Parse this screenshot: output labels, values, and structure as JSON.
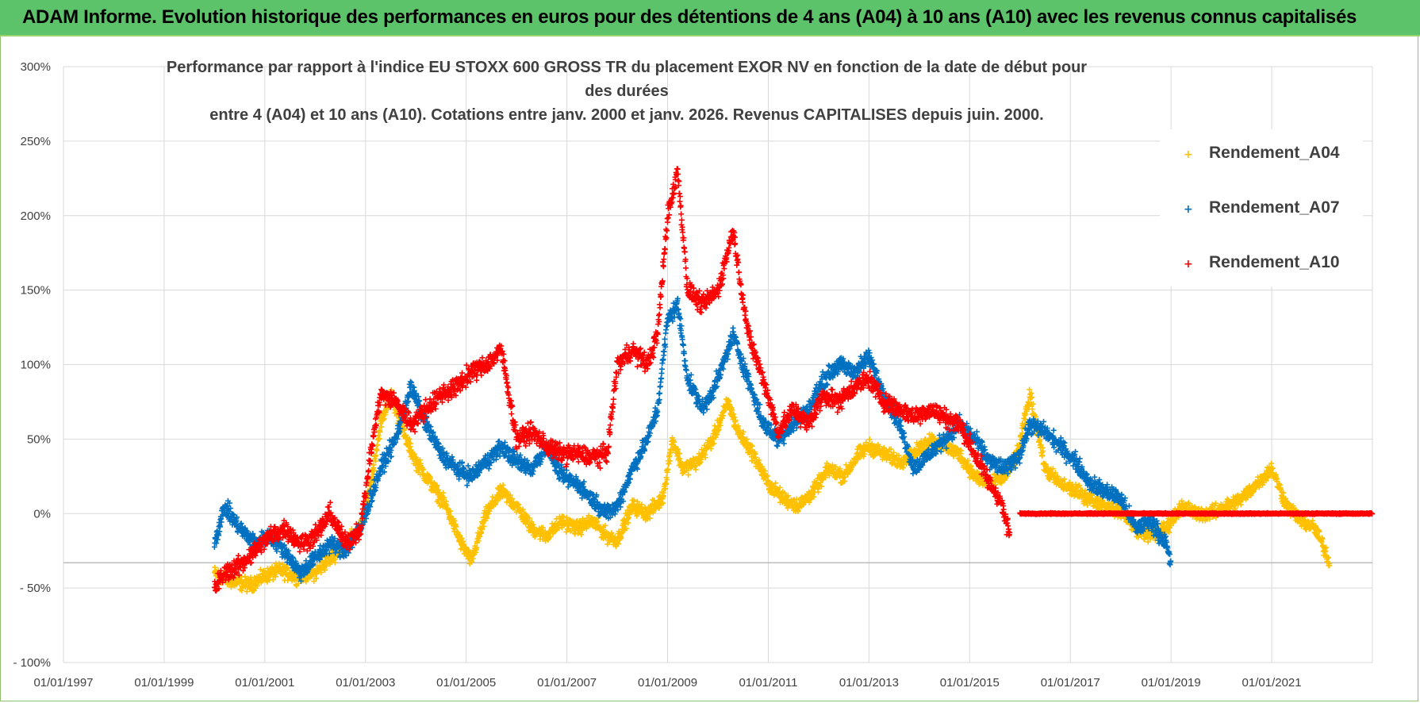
{
  "header": {
    "title": "ADAM Informe. Evolution historique des performances en euros pour des détentions de 4 ans (A04) à 10 ans (A10) avec les revenus connus capitalisés"
  },
  "colors": {
    "header_bg": "#5cc36a",
    "A04": "#ffc000",
    "A07": "#0070c0",
    "A10": "#ff0000",
    "grid": "#d9d9d9",
    "text": "#404040"
  },
  "chart_data": {
    "type": "scatter",
    "title_line1": "Performance par rapport à l'indice EU STOXX 600 GROSS TR  du placement EXOR NV en fonction de la date de début pour des durées",
    "title_line2": "entre 4 (A04) et 10 ans (A10).  Cotations entre janv. 2000 et janv. 2026. Revenus CAPITALISES depuis juin. 2000.",
    "x_range": [
      1997.0,
      2023.0
    ],
    "ylim": [
      -100,
      300
    ],
    "y_ticks": [
      -100,
      -50,
      0,
      50,
      100,
      150,
      200,
      250,
      300
    ],
    "y_tick_labels": [
      "- 100%",
      "- 50%",
      "0%",
      "50%",
      "100%",
      "150%",
      "200%",
      "250%",
      "300%"
    ],
    "x_ticks": [
      1997,
      1999,
      2001,
      2003,
      2005,
      2007,
      2009,
      2011,
      2013,
      2015,
      2017,
      2019,
      2021
    ],
    "x_tick_labels": [
      "01/01/1997",
      "01/01/1999",
      "01/01/2001",
      "01/01/2003",
      "01/01/2005",
      "01/01/2007",
      "01/01/2009",
      "01/01/2011",
      "01/01/2013",
      "01/01/2015",
      "01/01/2017",
      "01/01/2019",
      "01/01/2021"
    ],
    "reference_line": -33,
    "legend": [
      "Rendement_A04",
      "Rendement_A07",
      "Rendement_A10"
    ],
    "series": [
      {
        "name": "Rendement_A04",
        "key": "A04",
        "x": [
          2000.0,
          2000.3,
          2000.7,
          2001.0,
          2001.3,
          2001.6,
          2002.0,
          2002.3,
          2002.6,
          2002.9,
          2003.1,
          2003.3,
          2003.5,
          2003.8,
          2004.0,
          2004.3,
          2004.6,
          2004.9,
          2005.1,
          2005.4,
          2005.7,
          2006.0,
          2006.3,
          2006.6,
          2006.9,
          2007.2,
          2007.5,
          2007.8,
          2008.0,
          2008.3,
          2008.6,
          2008.9,
          2009.1,
          2009.3,
          2009.6,
          2009.9,
          2010.2,
          2010.4,
          2010.7,
          2011.0,
          2011.3,
          2011.6,
          2011.9,
          2012.2,
          2012.5,
          2012.8,
          2013.0,
          2013.3,
          2013.6,
          2013.9,
          2014.2,
          2014.5,
          2014.8,
          2015.1,
          2015.4,
          2015.7,
          2015.95,
          2016.2,
          2016.5,
          2016.8,
          2017.1,
          2017.4,
          2017.7,
          2018.0,
          2018.3,
          2018.6,
          2018.9,
          2019.2,
          2019.5,
          2019.8,
          2020.1,
          2020.4,
          2020.7,
          2021.0,
          2021.3,
          2021.6,
          2021.85,
          2022.0,
          2022.15
        ],
        "y": [
          -40,
          -45,
          -48,
          -42,
          -38,
          -42,
          -40,
          -30,
          -20,
          -10,
          20,
          60,
          80,
          50,
          35,
          20,
          5,
          -20,
          -32,
          0,
          15,
          5,
          -10,
          -15,
          -5,
          -10,
          -5,
          -15,
          -18,
          5,
          0,
          10,
          50,
          30,
          35,
          50,
          75,
          55,
          40,
          20,
          10,
          5,
          15,
          30,
          25,
          40,
          45,
          40,
          35,
          40,
          50,
          45,
          40,
          25,
          20,
          25,
          40,
          80,
          30,
          20,
          15,
          10,
          5,
          2,
          -10,
          -15,
          -10,
          5,
          0,
          0,
          5,
          10,
          20,
          30,
          5,
          -5,
          -10,
          -20,
          -33
        ],
        "jitter": 7
      },
      {
        "name": "Rendement_A07",
        "key": "A07",
        "x": [
          2000.0,
          2000.2,
          2000.5,
          2000.8,
          2001.1,
          2001.4,
          2001.7,
          2002.0,
          2002.3,
          2002.6,
          2002.9,
          2003.1,
          2003.3,
          2003.6,
          2003.9,
          2004.2,
          2004.5,
          2004.8,
          2005.1,
          2005.4,
          2005.7,
          2006.0,
          2006.3,
          2006.6,
          2006.9,
          2007.2,
          2007.5,
          2007.8,
          2008.0,
          2008.3,
          2008.6,
          2008.8,
          2009.0,
          2009.2,
          2009.4,
          2009.7,
          2010.0,
          2010.3,
          2010.6,
          2010.9,
          2011.2,
          2011.5,
          2011.8,
          2012.1,
          2012.4,
          2012.7,
          2013.0,
          2013.3,
          2013.6,
          2013.9,
          2014.2,
          2014.5,
          2014.8,
          2015.1,
          2015.4,
          2015.7,
          2016.0,
          2016.2,
          2016.5,
          2016.8,
          2017.1,
          2017.4,
          2017.7,
          2018.0,
          2018.3,
          2018.6,
          2018.9,
          2019.0
        ],
        "y": [
          -20,
          5,
          -10,
          -20,
          -15,
          -25,
          -40,
          -30,
          -20,
          -25,
          -10,
          10,
          30,
          50,
          85,
          60,
          40,
          30,
          25,
          35,
          45,
          35,
          30,
          45,
          25,
          20,
          10,
          0,
          5,
          30,
          50,
          70,
          130,
          140,
          90,
          70,
          90,
          120,
          90,
          60,
          50,
          60,
          70,
          90,
          100,
          95,
          105,
          80,
          60,
          30,
          40,
          50,
          60,
          50,
          35,
          30,
          40,
          60,
          55,
          45,
          35,
          20,
          15,
          10,
          -10,
          -5,
          -20,
          -35
        ],
        "jitter": 8
      },
      {
        "name": "Rendement_A10",
        "key": "A10",
        "x": [
          2000.0,
          2000.2,
          2000.5,
          2000.8,
          2001.1,
          2001.4,
          2001.7,
          2002.0,
          2002.3,
          2002.6,
          2002.9,
          2003.1,
          2003.3,
          2003.6,
          2003.9,
          2004.2,
          2004.5,
          2004.8,
          2005.1,
          2005.4,
          2005.7,
          2006.0,
          2006.3,
          2006.6,
          2006.9,
          2007.2,
          2007.5,
          2007.8,
          2008.0,
          2008.3,
          2008.6,
          2008.8,
          2009.0,
          2009.2,
          2009.4,
          2009.7,
          2010.0,
          2010.3,
          2010.6,
          2010.9,
          2011.2,
          2011.5,
          2011.8,
          2012.1,
          2012.4,
          2012.7,
          2013.0,
          2013.3,
          2013.6,
          2013.9,
          2014.2,
          2014.5,
          2014.8,
          2015.1,
          2015.4,
          2015.6,
          2015.8
        ],
        "y": [
          -50,
          -40,
          -35,
          -25,
          -15,
          -10,
          -20,
          -15,
          0,
          -20,
          -10,
          40,
          80,
          75,
          60,
          70,
          80,
          85,
          95,
          100,
          110,
          50,
          55,
          45,
          40,
          40,
          38,
          40,
          100,
          110,
          100,
          120,
          200,
          230,
          150,
          140,
          150,
          190,
          120,
          90,
          55,
          70,
          60,
          80,
          75,
          85,
          90,
          75,
          70,
          65,
          70,
          65,
          60,
          40,
          20,
          10,
          -15
        ],
        "jitter": 9
      },
      {
        "name": "Rendement_A10_zero_line",
        "key": "A10",
        "x": [
          2016.0,
          2023.0
        ],
        "y": [
          0,
          0
        ],
        "jitter": 0.6
      }
    ]
  }
}
